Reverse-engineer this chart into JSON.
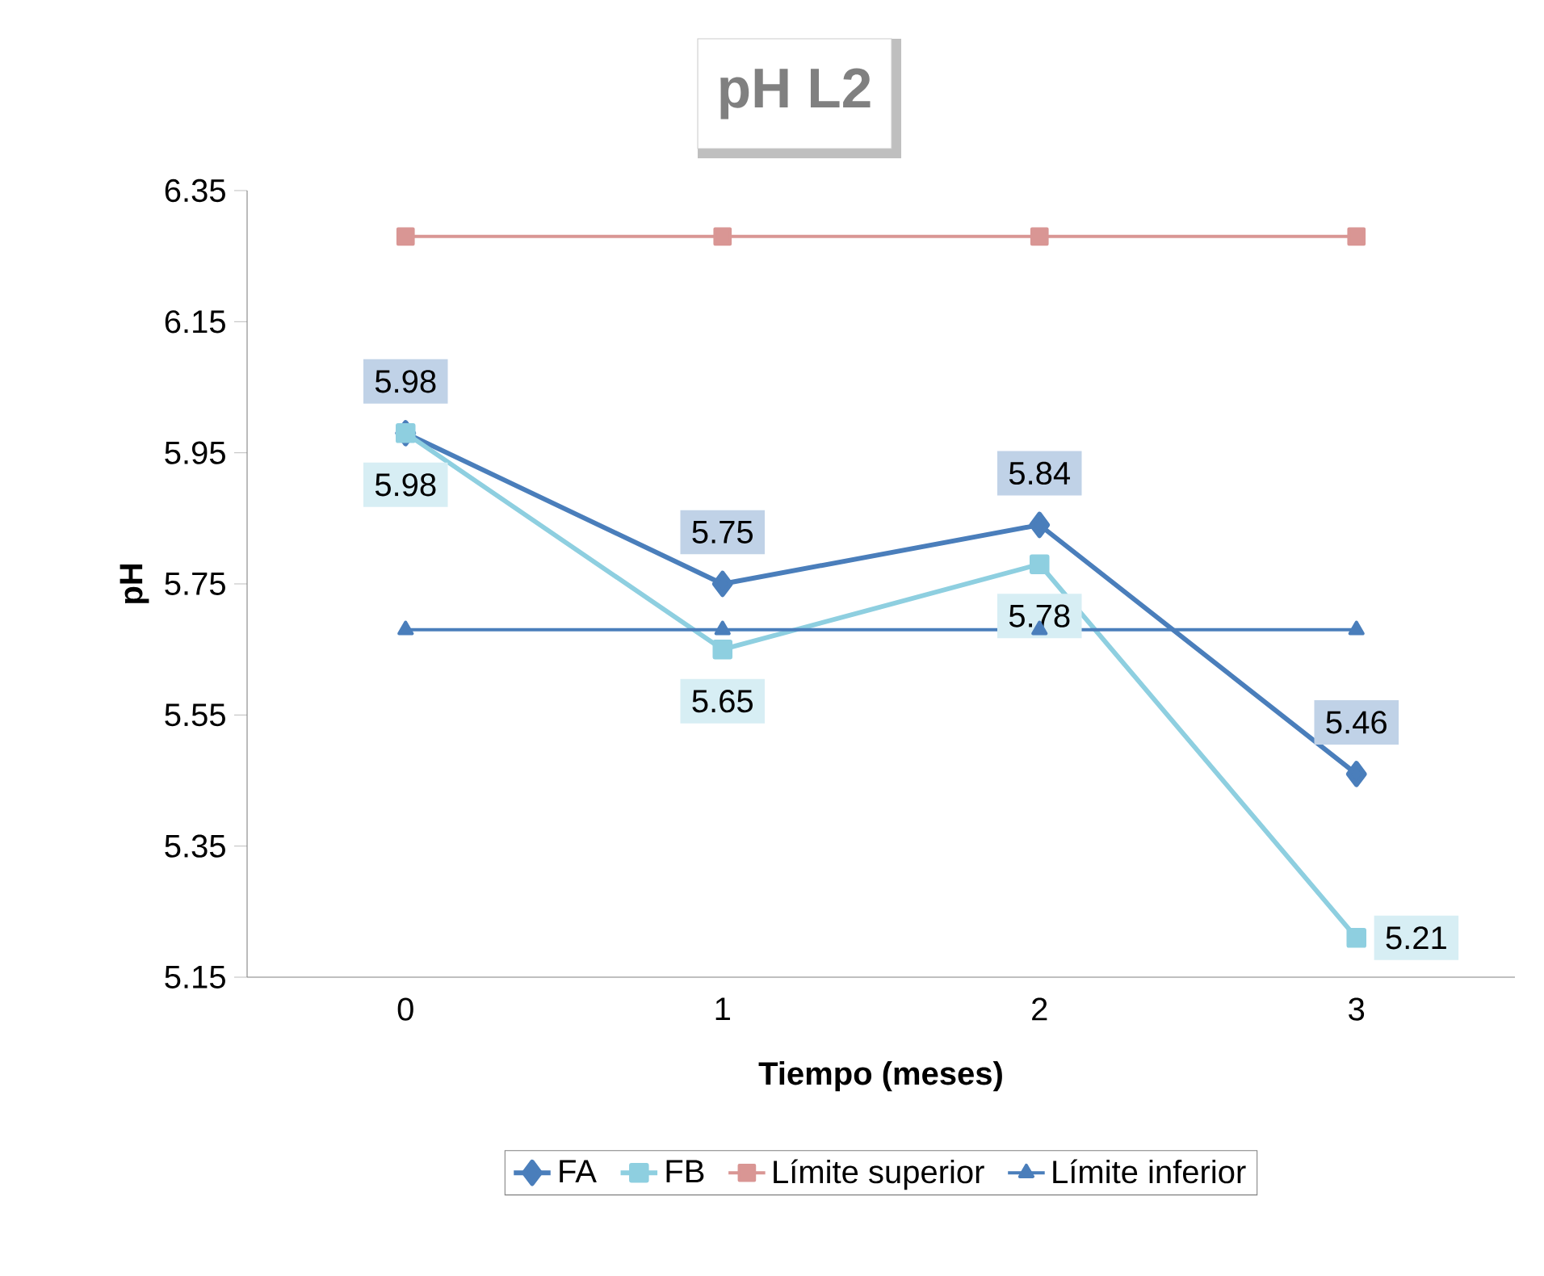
{
  "chart_data": {
    "type": "line",
    "title": "pH L2",
    "xlabel": "Tiempo (meses)",
    "ylabel": "pH",
    "categories": [
      "0",
      "1",
      "2",
      "3"
    ],
    "series": [
      {
        "name": "FA",
        "color": "#4a7ebb",
        "marker": "diamond",
        "values": [
          5.98,
          5.75,
          5.84,
          5.46
        ],
        "value_labels": [
          "5.98",
          "5.75",
          "5.84",
          "5.46"
        ]
      },
      {
        "name": "FB",
        "color": "#8ecfe0",
        "marker": "square",
        "values": [
          5.98,
          5.65,
          5.78,
          5.21
        ],
        "value_labels": [
          "5.98",
          "5.65",
          "5.78",
          "5.21"
        ]
      },
      {
        "name": "Límite superior",
        "color": "#d99694",
        "marker": "square",
        "values": [
          6.28,
          6.28,
          6.28,
          6.28
        ]
      },
      {
        "name": "Límite inferior",
        "color": "#4a7ebb",
        "marker": "triangle",
        "values": [
          5.68,
          5.68,
          5.68,
          5.68
        ]
      }
    ],
    "ylim": [
      5.15,
      6.35
    ],
    "yticks": [
      5.15,
      5.35,
      5.55,
      5.75,
      5.95,
      6.15,
      6.35
    ],
    "legend": "bottom",
    "line_style": "solid"
  }
}
